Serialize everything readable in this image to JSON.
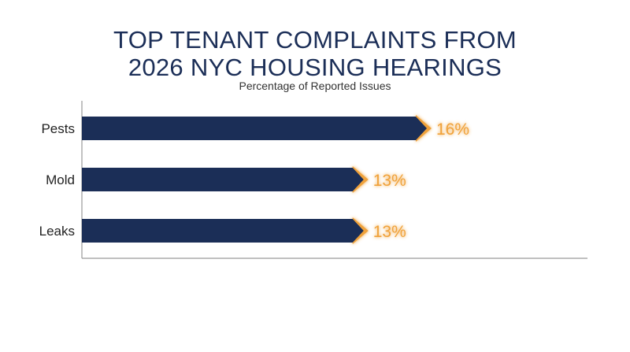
{
  "chart_data": {
    "type": "bar",
    "orientation": "horizontal",
    "title_lines": [
      "TOP TENANT COMPLAINTS FROM",
      "2026 NYC HOUSING HEARINGS"
    ],
    "subtitle": "Percentage of Reported Issues",
    "categories": [
      "Pests",
      "Mold",
      "Leaks"
    ],
    "values": [
      16,
      13,
      13
    ],
    "value_labels": [
      "16%",
      "13%",
      "13%"
    ],
    "xlim": [
      0,
      24
    ],
    "grid": false,
    "legend": "none",
    "colors": {
      "bar": "#1b2e57",
      "accent": "#f0a23a",
      "title": "#1b2e57"
    }
  }
}
